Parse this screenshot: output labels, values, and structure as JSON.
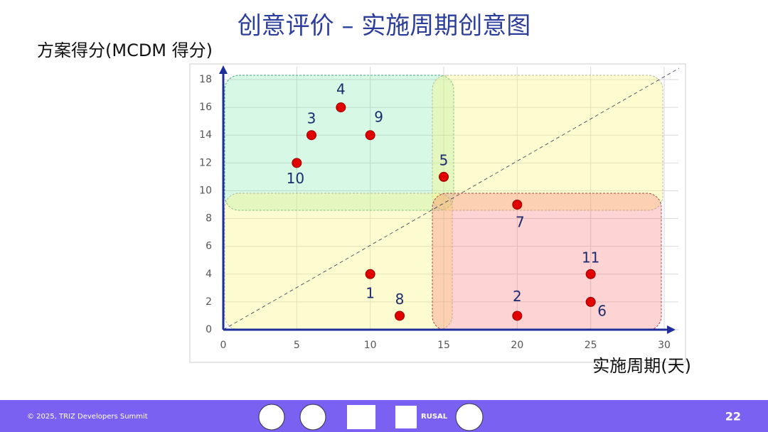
{
  "chart_data": {
    "type": "scatter",
    "title": "创意评价 – 实施周期创意图",
    "y_label": "方案得分(MCDM 得分)",
    "x_label": "实施周期(天)",
    "point_labels": [
      "1",
      "2",
      "3",
      "4",
      "5",
      "6",
      "7",
      "8",
      "9",
      "10",
      "11"
    ],
    "x": [
      10,
      20,
      6,
      8,
      15,
      25,
      20,
      12,
      10,
      5,
      25
    ],
    "y": [
      4,
      1,
      14,
      16,
      11,
      2,
      9,
      1,
      14,
      12,
      4
    ],
    "color": "#e00000",
    "xlim": [
      0,
      30
    ],
    "xticks": [
      0,
      5,
      10,
      15,
      20,
      25,
      30
    ],
    "ylim": [
      0,
      18
    ],
    "yticks": [
      0,
      2,
      4,
      6,
      8,
      10,
      12,
      14,
      16,
      18
    ],
    "grid": true
  },
  "footer": {
    "copyright": "© 2025, TRIZ Developers Summit",
    "logo_text": "RUSAL",
    "page": "22"
  }
}
